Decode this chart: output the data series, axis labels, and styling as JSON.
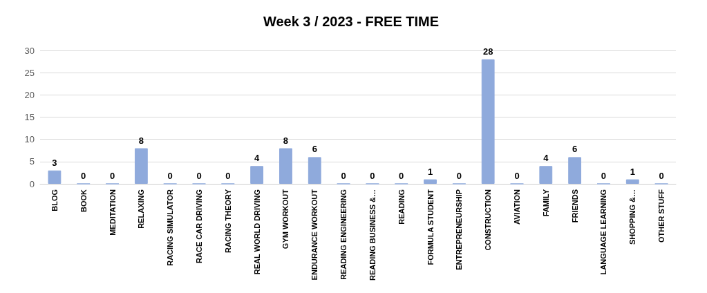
{
  "chart_data": {
    "type": "bar",
    "title": "Week 3 / 2023 - FREE TIME",
    "categories": [
      "BLOG",
      "BOOK",
      "MEDITATION",
      "RELAXING",
      "RACING SIMULATOR",
      "RACE CAR DRIVING",
      "RACING THEORY",
      "REAL WORLD DRIVING",
      "GYM WORKOUT",
      "ENDURANCE WORKOUT",
      "READING ENGINEERING",
      "READING BUSINESS &…",
      "READING",
      "FORMULA STUDENT",
      "ENTREPRENEURSHIP",
      "CONSTRUCTION",
      "AVIATION",
      "FAMILY",
      "FRIENDS",
      "LANGUAGE LEARNING",
      "SHOPPING &…",
      "OTHER STUFF"
    ],
    "values": [
      3,
      0,
      0,
      8,
      0,
      0,
      0,
      4,
      8,
      6,
      0,
      0,
      0,
      1,
      0,
      28,
      0,
      4,
      6,
      0,
      1,
      0
    ],
    "color": "#8faadc",
    "ylim": [
      0,
      30
    ],
    "yticks": [
      0,
      5,
      10,
      15,
      20,
      25,
      30
    ],
    "grid": "y",
    "data_labels": true
  }
}
